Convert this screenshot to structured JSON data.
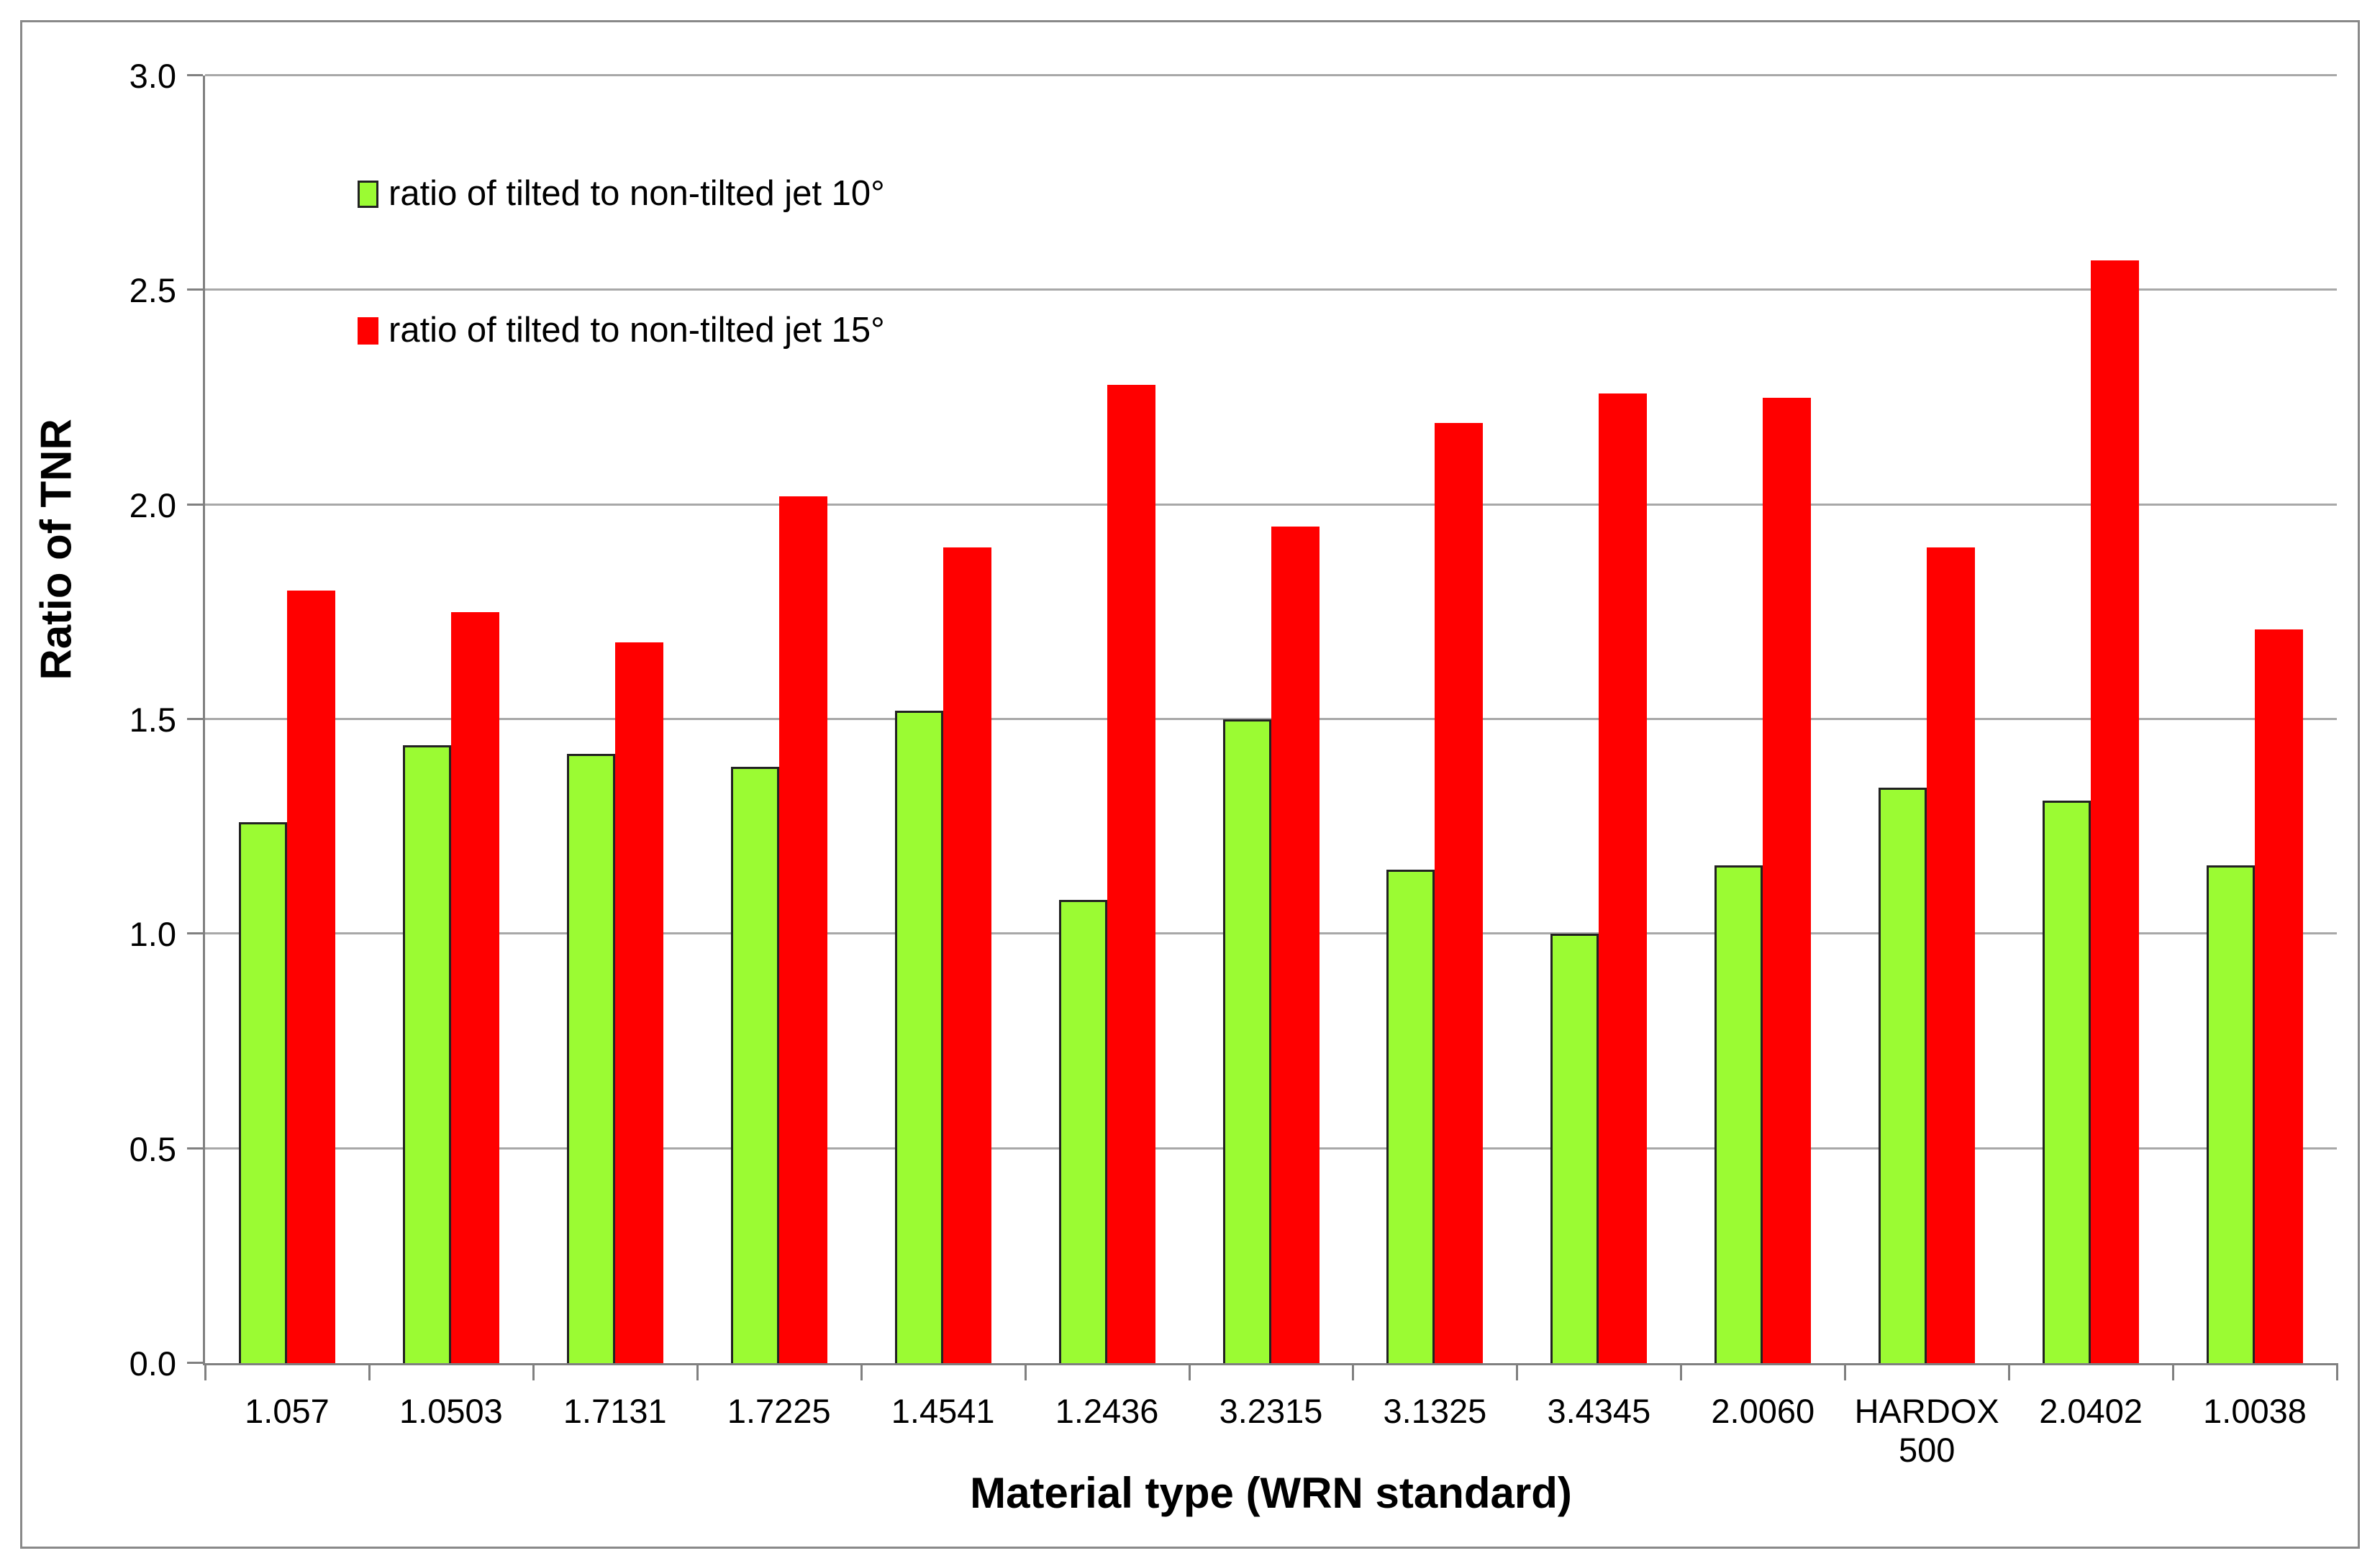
{
  "figure": {
    "background": "#FFFFFF",
    "border_color": "#898989",
    "axis_color": "#808080",
    "gridline_color": "#A8A8A8",
    "bar_outline_color": "#222222"
  },
  "chart_data": {
    "type": "bar",
    "title": "",
    "xlabel": "Material type (WRN standard)",
    "ylabel": "Ratio of TNR",
    "categories": [
      "1.057",
      "1.0503",
      "1.7131",
      "1.7225",
      "1.4541",
      "1.2436",
      "3.2315",
      "3.1325",
      "3.4345",
      "2.0060",
      "HARDOX 500",
      "2.0402",
      "1.0038"
    ],
    "series": [
      {
        "name": "ratio of tilted to non-tilted jet 10°",
        "color": "#9BFB33",
        "outlined": true,
        "values": [
          1.26,
          1.44,
          1.42,
          1.39,
          1.52,
          1.08,
          1.5,
          1.15,
          1.0,
          1.16,
          1.34,
          1.31,
          1.16
        ]
      },
      {
        "name": "ratio of tilted to non-tilted jet 15°",
        "color": "#FF0000",
        "outlined": false,
        "values": [
          1.8,
          1.75,
          1.68,
          2.02,
          1.9,
          2.28,
          1.95,
          2.19,
          2.26,
          2.25,
          1.9,
          2.57,
          1.71
        ]
      }
    ],
    "ylim": [
      0,
      3
    ],
    "ytick_step": 0.5,
    "ytick_labels": [
      "0.0",
      "0.5",
      "1.0",
      "1.5",
      "2.0",
      "2.5",
      "3.0"
    ],
    "grid": "horizontal",
    "legend_position": "top-left-inside"
  }
}
